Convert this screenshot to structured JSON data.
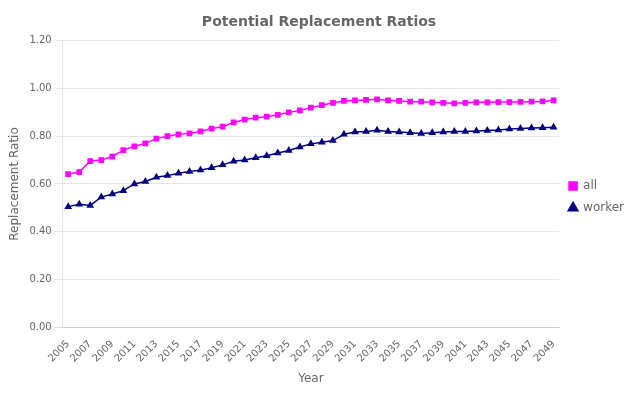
{
  "chart_data": {
    "type": "line",
    "title": "Potential Replacement Ratios",
    "x_label": "Year",
    "y_label": "Replacement Ratio",
    "x": [
      2005,
      2006,
      2007,
      2008,
      2009,
      2010,
      2011,
      2012,
      2013,
      2014,
      2015,
      2016,
      2017,
      2018,
      2019,
      2020,
      2021,
      2022,
      2023,
      2024,
      2025,
      2026,
      2027,
      2028,
      2029,
      2030,
      2031,
      2032,
      2033,
      2034,
      2035,
      2036,
      2037,
      2038,
      2039,
      2040,
      2041,
      2042,
      2043,
      2044,
      2045,
      2046,
      2047,
      2048,
      2049
    ],
    "series": [
      {
        "name": "all",
        "color": "#FF00FF",
        "marker": "square",
        "values": [
          0.641,
          0.65,
          0.696,
          0.7,
          0.715,
          0.742,
          0.758,
          0.77,
          0.79,
          0.8,
          0.808,
          0.812,
          0.82,
          0.832,
          0.84,
          0.858,
          0.87,
          0.878,
          0.882,
          0.89,
          0.9,
          0.908,
          0.92,
          0.93,
          0.94,
          0.948,
          0.95,
          0.952,
          0.955,
          0.95,
          0.948,
          0.945,
          0.945,
          0.942,
          0.94,
          0.938,
          0.94,
          0.942,
          0.942,
          0.943,
          0.943,
          0.944,
          0.945,
          0.946,
          0.95
        ]
      },
      {
        "name": "worker",
        "color": "#000080",
        "marker": "triangle",
        "values": [
          0.505,
          0.515,
          0.51,
          0.545,
          0.558,
          0.572,
          0.6,
          0.61,
          0.628,
          0.635,
          0.645,
          0.652,
          0.658,
          0.668,
          0.68,
          0.695,
          0.7,
          0.71,
          0.718,
          0.73,
          0.74,
          0.755,
          0.768,
          0.775,
          0.782,
          0.808,
          0.818,
          0.82,
          0.825,
          0.82,
          0.818,
          0.815,
          0.812,
          0.815,
          0.818,
          0.82,
          0.82,
          0.822,
          0.824,
          0.826,
          0.83,
          0.832,
          0.835,
          0.836,
          0.838
        ]
      }
    ],
    "xlim": [
      2004.5,
      2049.5
    ],
    "xticks": [
      2005,
      2007,
      2009,
      2011,
      2013,
      2015,
      2017,
      2019,
      2021,
      2023,
      2025,
      2027,
      2029,
      2031,
      2033,
      2035,
      2037,
      2039,
      2041,
      2043,
      2045,
      2047,
      2049
    ],
    "ylim": [
      0.0,
      1.2
    ],
    "yticks": [
      {
        "value": 0.0,
        "label": "0.00"
      },
      {
        "value": 0.2,
        "label": "0.20"
      },
      {
        "value": 0.4,
        "label": "0.40"
      },
      {
        "value": 0.6,
        "label": "0.60"
      },
      {
        "value": 0.8,
        "label": "0.80"
      },
      {
        "value": 1.0,
        "label": "1.00"
      },
      {
        "value": 1.2,
        "label": "1.20"
      }
    ],
    "grid": "y",
    "legend": "right"
  }
}
